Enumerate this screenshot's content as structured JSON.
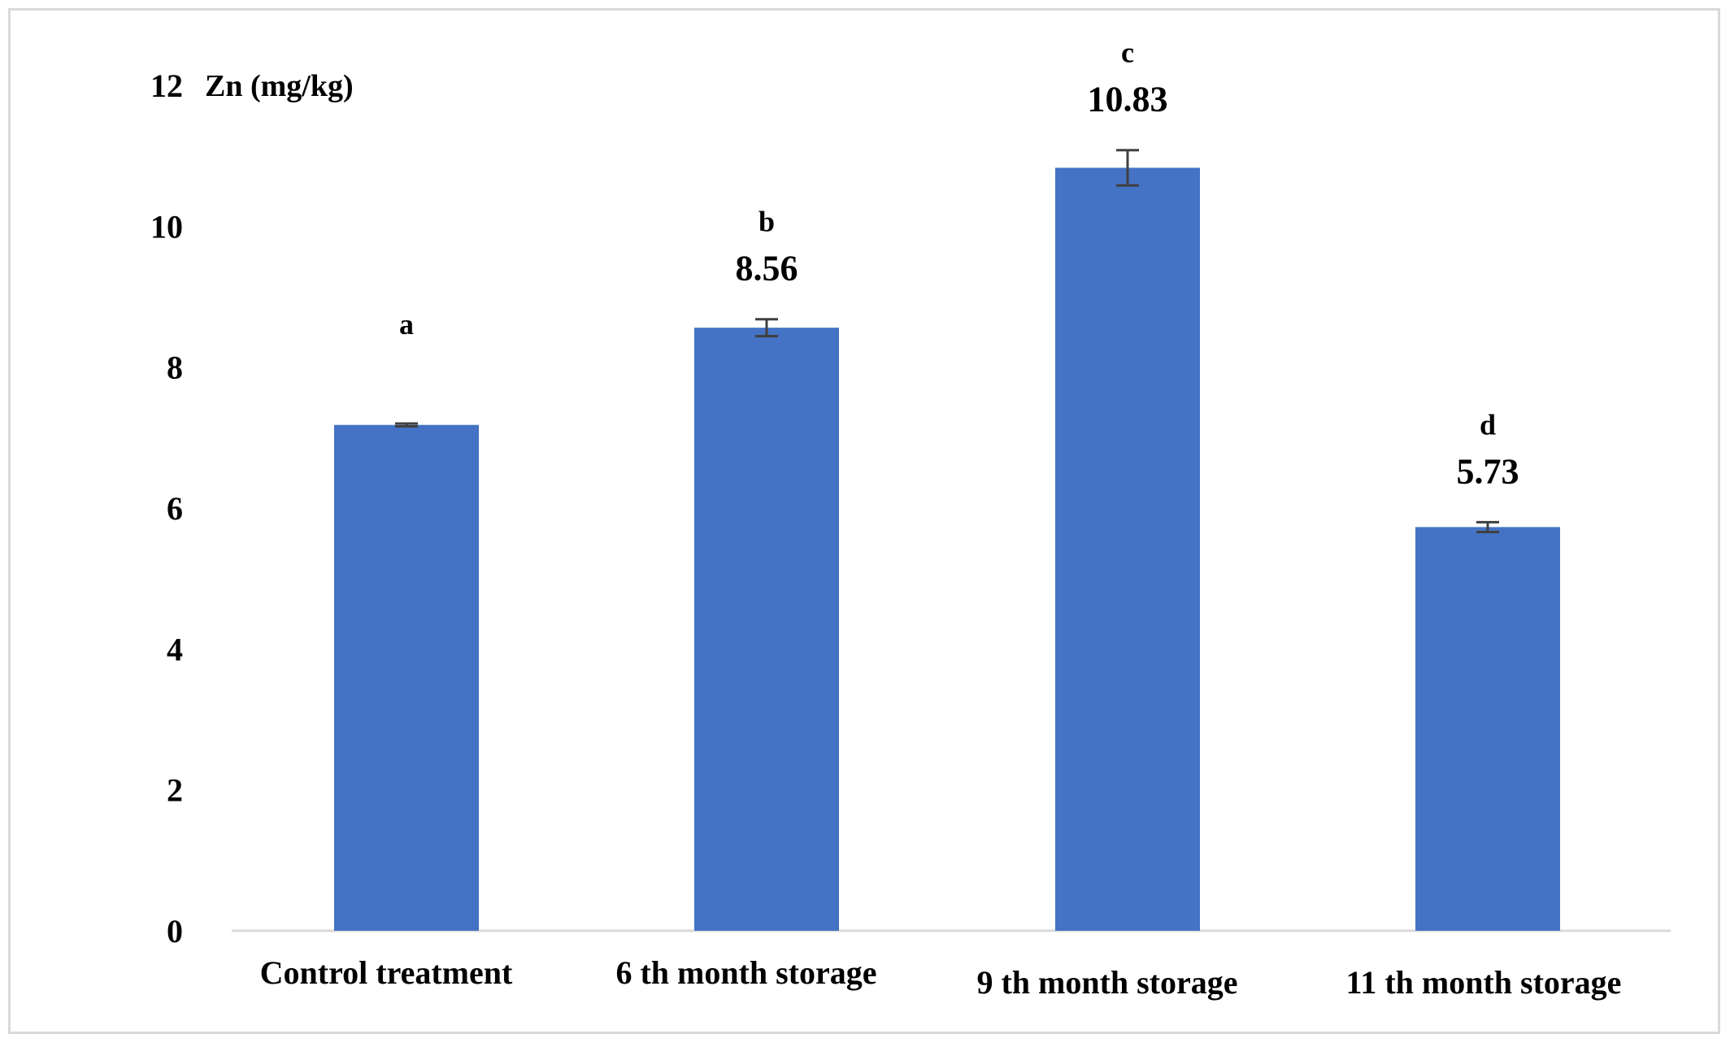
{
  "chart_data": {
    "type": "bar",
    "ylabel": "Zn (mg/kg)",
    "ylim": [
      0,
      12
    ],
    "yticks": [
      "0",
      "2",
      "4",
      "6",
      "8",
      "10",
      "12"
    ],
    "grid": false,
    "legend": "none",
    "bar_color": "#4472C4",
    "categories": [
      "Control treatment",
      "6 th month storage",
      "9 th month storage",
      "11 th month storage"
    ],
    "values": [
      7.18,
      8.56,
      10.83,
      5.73
    ],
    "error": [
      0.02,
      0.12,
      0.25,
      0.07
    ],
    "value_labels": [
      "",
      "8.56",
      "10.83",
      "5.73"
    ],
    "significance_letters": [
      "a",
      "b",
      "c",
      "d"
    ]
  }
}
